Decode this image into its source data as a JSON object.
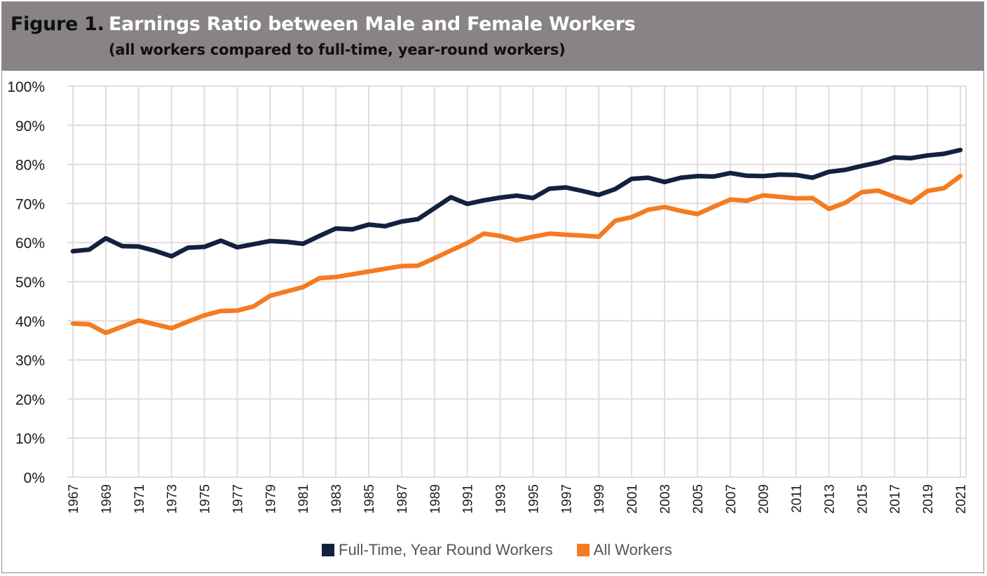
{
  "figure": {
    "label": "Figure 1.",
    "title": "Earnings Ratio between Male and Female Workers",
    "subtitle": "(all workers compared to full-time, year-round workers)"
  },
  "chart_data": {
    "type": "line",
    "x": [
      1967,
      1968,
      1969,
      1970,
      1971,
      1972,
      1973,
      1974,
      1975,
      1976,
      1977,
      1978,
      1979,
      1980,
      1981,
      1982,
      1983,
      1984,
      1985,
      1986,
      1987,
      1988,
      1989,
      1990,
      1991,
      1992,
      1993,
      1994,
      1995,
      1996,
      1997,
      1998,
      1999,
      2000,
      2001,
      2002,
      2003,
      2004,
      2005,
      2006,
      2007,
      2008,
      2009,
      2010,
      2011,
      2012,
      2013,
      2014,
      2015,
      2016,
      2017,
      2018,
      2019,
      2020,
      2021
    ],
    "xtick_labels": [
      "1967",
      "1969",
      "1971",
      "1973",
      "1975",
      "1977",
      "1979",
      "1981",
      "1983",
      "1985",
      "1987",
      "1989",
      "1991",
      "1993",
      "1995",
      "1997",
      "1999",
      "2001",
      "2003",
      "2005",
      "2007",
      "2009",
      "2011",
      "2013",
      "2015",
      "2017",
      "2019",
      "2021"
    ],
    "ytick_labels": [
      "0%",
      "10%",
      "20%",
      "30%",
      "40%",
      "50%",
      "60%",
      "70%",
      "80%",
      "90%",
      "100%"
    ],
    "ylim": [
      0,
      100
    ],
    "grid": true,
    "legend_position": "bottom-center",
    "series": [
      {
        "name": "Full-Time, Year Round Workers",
        "color": "#13213f",
        "values": [
          57.8,
          58.2,
          61.1,
          59.1,
          59.0,
          57.9,
          56.5,
          58.7,
          58.9,
          60.5,
          58.8,
          59.6,
          60.4,
          60.2,
          59.7,
          61.7,
          63.6,
          63.4,
          64.6,
          64.2,
          65.4,
          66.0,
          68.8,
          71.6,
          69.9,
          70.8,
          71.5,
          72.0,
          71.4,
          73.8,
          74.1,
          73.2,
          72.2,
          73.7,
          76.3,
          76.6,
          75.5,
          76.6,
          77.0,
          76.9,
          77.8,
          77.1,
          77.0,
          77.4,
          77.3,
          76.6,
          78.1,
          78.6,
          79.6,
          80.5,
          81.8,
          81.6,
          82.3,
          82.7,
          83.7
        ]
      },
      {
        "name": "All Workers",
        "color": "#f47b20",
        "values": [
          39.3,
          39.1,
          36.9,
          38.5,
          40.1,
          39.1,
          38.1,
          39.8,
          41.4,
          42.5,
          42.6,
          43.7,
          46.4,
          47.5,
          48.6,
          50.9,
          51.2,
          51.9,
          52.6,
          53.3,
          54.0,
          54.1,
          56.0,
          58.0,
          59.9,
          62.3,
          61.7,
          60.6,
          61.5,
          62.3,
          62.0,
          61.8,
          61.5,
          65.6,
          66.5,
          68.4,
          69.1,
          68.1,
          67.3,
          69.2,
          71.0,
          70.7,
          72.1,
          71.7,
          71.3,
          71.4,
          68.6,
          70.2,
          72.9,
          73.3,
          71.7,
          70.2,
          73.2,
          73.9,
          77.0
        ]
      }
    ]
  }
}
